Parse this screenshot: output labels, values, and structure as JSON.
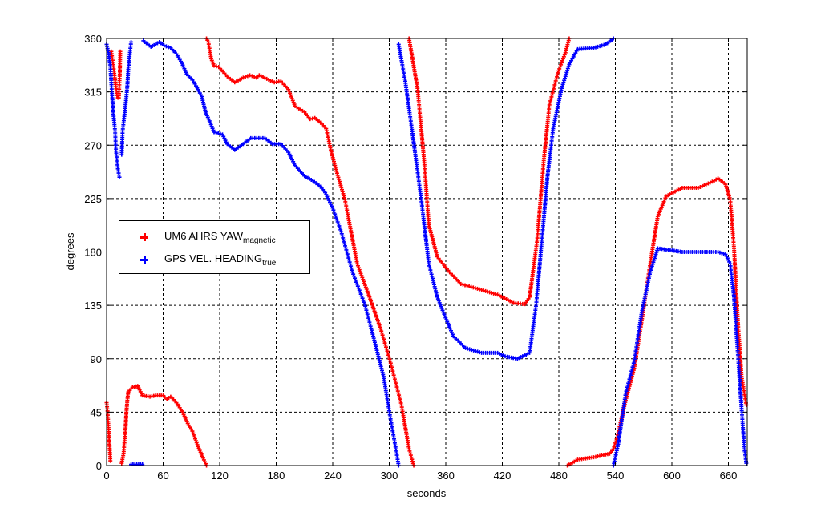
{
  "chart_data": {
    "type": "scatter",
    "title": "",
    "xlabel": "seconds",
    "ylabel": "degrees",
    "xlim": [
      0,
      680
    ],
    "ylim": [
      0,
      360
    ],
    "xticks": [
      0,
      60,
      120,
      180,
      240,
      300,
      360,
      420,
      480,
      540,
      600,
      660
    ],
    "yticks": [
      0,
      45,
      90,
      135,
      180,
      225,
      270,
      315,
      360
    ],
    "grid": true,
    "legend_position": "left-middle",
    "series": [
      {
        "name": "UM6 AHRS YAW",
        "name_subscript": "magnetic",
        "color": "#ff0000",
        "marker": "plus",
        "segments": [
          [
            [
              0,
              53
            ],
            [
              1,
              46
            ],
            [
              2,
              32
            ],
            [
              3,
              18
            ],
            [
              4,
              4
            ]
          ],
          [
            [
              5,
              349
            ],
            [
              7,
              338
            ],
            [
              9,
              325
            ],
            [
              11,
              312
            ],
            [
              12,
              310
            ]
          ],
          [
            [
              13,
              310
            ],
            [
              14,
              330
            ],
            [
              14.5,
              349
            ]
          ],
          [
            [
              16,
              2
            ],
            [
              18,
              10
            ],
            [
              20,
              30
            ],
            [
              21,
              45
            ],
            [
              22,
              55
            ],
            [
              23,
              62
            ],
            [
              27.5,
              66
            ],
            [
              33,
              67
            ],
            [
              38,
              59
            ],
            [
              46,
              58
            ],
            [
              52,
              59
            ],
            [
              60,
              59
            ],
            [
              64,
              56
            ],
            [
              68,
              58
            ],
            [
              74,
              53
            ],
            [
              80,
              46
            ],
            [
              87,
              34
            ],
            [
              91,
              29
            ],
            [
              97,
              16
            ],
            [
              106,
              0
            ]
          ],
          [
            [
              106,
              360
            ],
            [
              108,
              357
            ],
            [
              111,
              343
            ],
            [
              114,
              337
            ],
            [
              119,
              336
            ],
            [
              128,
              328
            ],
            [
              136,
              323
            ],
            [
              145,
              327
            ],
            [
              152,
              329
            ],
            [
              159,
              327
            ],
            [
              162,
              329
            ],
            [
              170,
              326
            ],
            [
              178,
              323
            ],
            [
              185,
              324
            ],
            [
              193,
              317
            ],
            [
              200,
              303
            ],
            [
              210,
              298
            ],
            [
              216,
              292
            ],
            [
              221,
              293
            ],
            [
              227,
              289
            ],
            [
              233,
              284
            ],
            [
              238,
              266
            ],
            [
              244,
              248
            ],
            [
              253,
              224
            ],
            [
              266,
              170
            ],
            [
              279,
              142
            ],
            [
              291,
              115
            ],
            [
              301,
              88
            ],
            [
              313,
              51
            ],
            [
              321,
              14
            ],
            [
              326,
              0
            ]
          ],
          [
            [
              321,
              360
            ],
            [
              330,
              318
            ],
            [
              337,
              257
            ],
            [
              342,
              203
            ],
            [
              351,
              176
            ],
            [
              364,
              163
            ],
            [
              376,
              153
            ],
            [
              398,
              148
            ],
            [
              415,
              144
            ],
            [
              432,
              137
            ],
            [
              444,
              136
            ],
            [
              449,
              142
            ],
            [
              457,
              190
            ],
            [
              464,
              257
            ],
            [
              470,
              304
            ],
            [
              479,
              331
            ],
            [
              487,
              348
            ],
            [
              491,
              360
            ]
          ],
          [
            [
              489,
              0
            ],
            [
              500,
              5
            ],
            [
              517,
              7
            ],
            [
              534,
              10
            ],
            [
              538,
              14
            ],
            [
              542,
              24
            ],
            [
              551,
              55
            ],
            [
              560,
              82
            ],
            [
              568,
              122
            ],
            [
              577,
              170
            ],
            [
              585,
              210
            ],
            [
              594,
              227
            ],
            [
              611,
              234
            ],
            [
              628,
              234
            ],
            [
              645,
              240
            ],
            [
              649,
              242
            ],
            [
              657,
              237
            ],
            [
              662,
              224
            ],
            [
              666,
              183
            ],
            [
              670,
              122
            ],
            [
              674,
              75
            ],
            [
              679,
              51
            ]
          ]
        ]
      },
      {
        "name": "GPS VEL. HEADING",
        "name_subscript": "true",
        "color": "#0000ff",
        "marker": "plus",
        "segments": [
          [
            [
              0,
              355
            ],
            [
              2,
              348
            ],
            [
              4,
              336
            ],
            [
              5,
              323
            ],
            [
              6,
              310
            ],
            [
              7,
              298
            ],
            [
              9,
              282
            ],
            [
              10,
              265
            ],
            [
              12,
              250
            ],
            [
              13.6,
              243
            ]
          ],
          [
            [
              16,
              262
            ],
            [
              17,
              282
            ],
            [
              19,
              296
            ],
            [
              21,
              311
            ],
            [
              22,
              320
            ],
            [
              23,
              334
            ],
            [
              25,
              350
            ],
            [
              26,
              357
            ]
          ],
          [
            [
              26,
              1
            ],
            [
              32,
              1
            ],
            [
              38,
              1
            ]
          ],
          [
            [
              39,
              358
            ],
            [
              47,
              353
            ],
            [
              52,
              355
            ],
            [
              56,
              357
            ],
            [
              61,
              354
            ],
            [
              68,
              352
            ],
            [
              74,
              347
            ],
            [
              80,
              339
            ],
            [
              85,
              330
            ],
            [
              91,
              325
            ],
            [
              95,
              320
            ],
            [
              101,
              311
            ],
            [
              105,
              298
            ],
            [
              110,
              289
            ],
            [
              114,
              281
            ],
            [
              123,
              279
            ],
            [
              128,
              271
            ],
            [
              136,
              266
            ],
            [
              145,
              271
            ],
            [
              153,
              276
            ],
            [
              168,
              276
            ],
            [
              176,
              271
            ],
            [
              185,
              271
            ],
            [
              193,
              264
            ],
            [
              200,
              253
            ],
            [
              210,
              244
            ],
            [
              219,
              240
            ],
            [
              227,
              235
            ],
            [
              232,
              230
            ],
            [
              240,
              217
            ],
            [
              249,
              197
            ],
            [
              261,
              163
            ],
            [
              274,
              136
            ],
            [
              283,
              109
            ],
            [
              294,
              75
            ],
            [
              301,
              41
            ],
            [
              307,
              14
            ],
            [
              310,
              0
            ]
          ],
          [
            [
              310,
              355
            ],
            [
              317,
              324
            ],
            [
              325,
              278
            ],
            [
              334,
              224
            ],
            [
              342,
              170
            ],
            [
              351,
              142
            ],
            [
              359,
              126
            ],
            [
              368,
              109
            ],
            [
              381,
              99
            ],
            [
              398,
              95
            ],
            [
              415,
              95
            ],
            [
              423,
              92
            ],
            [
              436,
              90
            ],
            [
              449,
              95
            ],
            [
              456,
              136
            ],
            [
              462,
              190
            ],
            [
              468,
              244
            ],
            [
              474,
              284
            ],
            [
              483,
              318
            ],
            [
              491,
              338
            ],
            [
              500,
              351
            ],
            [
              517,
              352
            ],
            [
              530,
              355
            ],
            [
              538,
              360
            ]
          ],
          [
            [
              538,
              0
            ],
            [
              543,
              18
            ],
            [
              551,
              61
            ],
            [
              560,
              88
            ],
            [
              568,
              129
            ],
            [
              577,
              163
            ],
            [
              585,
              183
            ],
            [
              594,
              182
            ],
            [
              611,
              180
            ],
            [
              628,
              180
            ],
            [
              649,
              180
            ],
            [
              657,
              178
            ],
            [
              662,
              170
            ],
            [
              666,
              142
            ],
            [
              670,
              95
            ],
            [
              674,
              48
            ],
            [
              677,
              14
            ],
            [
              679,
              2
            ]
          ]
        ]
      }
    ]
  }
}
